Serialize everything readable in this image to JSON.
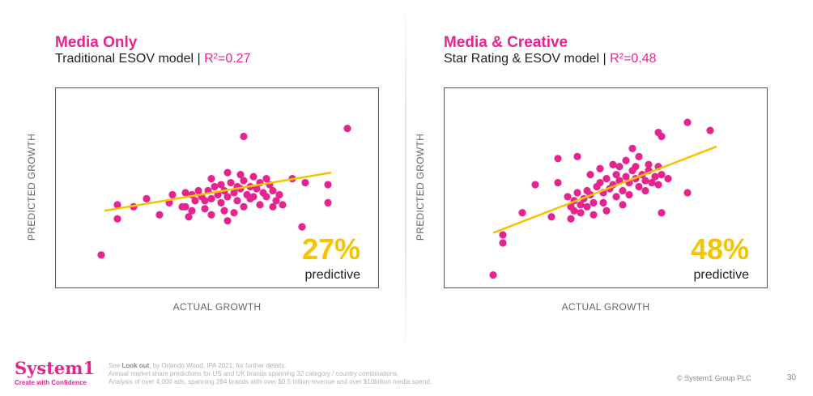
{
  "panels": [
    {
      "title": "Media Only",
      "subtitle": "Traditional ESOV model | ",
      "r2_label": "R²=0.27",
      "pct": "27%",
      "pct_caption": "predictive"
    },
    {
      "title": "Media & Creative",
      "subtitle": "Star Rating & ESOV model | ",
      "r2_label": "R²=0.48",
      "pct": "48%",
      "pct_caption": "predictive"
    }
  ],
  "footer": {
    "logo_text": "System1",
    "logo_tagline": "Create with Confidence",
    "note_prefix": "See ",
    "note_bold": "Look out",
    "note_suffix": ", by Orlando Wood, IPA 2021, for further details.",
    "note_line2": "Annual market share predictions for US and UK brands spanning 32 category / country combinations.",
    "note_line3": "Analysis of over 4,000 ads, spanning 264 brands with over $0.5 trillion revenue and over $10billion media spend.",
    "copyright": "© System1 Group PLC",
    "page_number": "30"
  },
  "colors": {
    "accent": "#e6248f",
    "point": "#e6248f",
    "trend": "#f5c400",
    "axis_text": "#666666"
  },
  "chart_data": [
    {
      "type": "scatter",
      "title": "Media Only",
      "subtitle": "Traditional ESOV model | R²=0.27",
      "xlabel": "ACTUAL GROWTH",
      "ylabel": "PREDICTED GROWTH",
      "xlim": [
        0,
        100
      ],
      "ylim": [
        0,
        100
      ],
      "grid": false,
      "legend": "none",
      "annotation": "27% predictive",
      "trendline": {
        "x": [
          15,
          85
        ],
        "y": [
          39,
          58
        ]
      },
      "points": [
        {
          "x": 14,
          "y": 17
        },
        {
          "x": 19,
          "y": 35
        },
        {
          "x": 19,
          "y": 42
        },
        {
          "x": 24,
          "y": 41
        },
        {
          "x": 28,
          "y": 45
        },
        {
          "x": 32,
          "y": 37
        },
        {
          "x": 35,
          "y": 43
        },
        {
          "x": 36,
          "y": 47
        },
        {
          "x": 40,
          "y": 48
        },
        {
          "x": 41,
          "y": 36
        },
        {
          "x": 39,
          "y": 41
        },
        {
          "x": 42,
          "y": 47
        },
        {
          "x": 43,
          "y": 44
        },
        {
          "x": 44,
          "y": 49
        },
        {
          "x": 45,
          "y": 46
        },
        {
          "x": 46,
          "y": 44
        },
        {
          "x": 47,
          "y": 49
        },
        {
          "x": 48,
          "y": 45
        },
        {
          "x": 49,
          "y": 51
        },
        {
          "x": 50,
          "y": 47
        },
        {
          "x": 51,
          "y": 43
        },
        {
          "x": 52,
          "y": 49
        },
        {
          "x": 53,
          "y": 46
        },
        {
          "x": 54,
          "y": 53
        },
        {
          "x": 55,
          "y": 48
        },
        {
          "x": 56,
          "y": 44
        },
        {
          "x": 57,
          "y": 50
        },
        {
          "x": 58,
          "y": 54
        },
        {
          "x": 59,
          "y": 47
        },
        {
          "x": 60,
          "y": 51
        },
        {
          "x": 61,
          "y": 46
        },
        {
          "x": 62,
          "y": 50
        },
        {
          "x": 63,
          "y": 53
        },
        {
          "x": 64,
          "y": 48
        },
        {
          "x": 65,
          "y": 46
        },
        {
          "x": 66,
          "y": 52
        },
        {
          "x": 67,
          "y": 49
        },
        {
          "x": 68,
          "y": 44
        },
        {
          "x": 48,
          "y": 55
        },
        {
          "x": 53,
          "y": 58
        },
        {
          "x": 57,
          "y": 57
        },
        {
          "x": 61,
          "y": 56
        },
        {
          "x": 46,
          "y": 40
        },
        {
          "x": 52,
          "y": 39
        },
        {
          "x": 55,
          "y": 38
        },
        {
          "x": 58,
          "y": 41
        },
        {
          "x": 63,
          "y": 42
        },
        {
          "x": 67,
          "y": 41
        },
        {
          "x": 48,
          "y": 37
        },
        {
          "x": 42,
          "y": 39
        },
        {
          "x": 51,
          "y": 52
        },
        {
          "x": 56,
          "y": 51
        },
        {
          "x": 60,
          "y": 45
        },
        {
          "x": 65,
          "y": 55
        },
        {
          "x": 69,
          "y": 47
        },
        {
          "x": 58,
          "y": 76
        },
        {
          "x": 53,
          "y": 34
        },
        {
          "x": 70,
          "y": 42
        },
        {
          "x": 73,
          "y": 55
        },
        {
          "x": 76,
          "y": 31
        },
        {
          "x": 77,
          "y": 53
        },
        {
          "x": 84,
          "y": 43
        },
        {
          "x": 84,
          "y": 52
        },
        {
          "x": 90,
          "y": 80
        },
        {
          "x": 40,
          "y": 41
        }
      ]
    },
    {
      "type": "scatter",
      "title": "Media & Creative",
      "subtitle": "Star Rating & ESOV model | R²=0.48",
      "xlabel": "ACTUAL GROWTH",
      "ylabel": "PREDICTED GROWTH",
      "xlim": [
        0,
        100
      ],
      "ylim": [
        0,
        100
      ],
      "grid": false,
      "legend": "none",
      "annotation": "48% predictive",
      "trendline": {
        "x": [
          15,
          84
        ],
        "y": [
          28,
          71
        ]
      },
      "points": [
        {
          "x": 15,
          "y": 7
        },
        {
          "x": 18,
          "y": 23
        },
        {
          "x": 18,
          "y": 27
        },
        {
          "x": 24,
          "y": 38
        },
        {
          "x": 28,
          "y": 52
        },
        {
          "x": 33,
          "y": 36
        },
        {
          "x": 35,
          "y": 53
        },
        {
          "x": 38,
          "y": 46
        },
        {
          "x": 39,
          "y": 41
        },
        {
          "x": 40,
          "y": 39
        },
        {
          "x": 40,
          "y": 44
        },
        {
          "x": 41,
          "y": 48
        },
        {
          "x": 42,
          "y": 42
        },
        {
          "x": 43,
          "y": 45
        },
        {
          "x": 44,
          "y": 49
        },
        {
          "x": 45,
          "y": 47
        },
        {
          "x": 46,
          "y": 43
        },
        {
          "x": 47,
          "y": 51
        },
        {
          "x": 48,
          "y": 53
        },
        {
          "x": 49,
          "y": 48
        },
        {
          "x": 50,
          "y": 55
        },
        {
          "x": 51,
          "y": 50
        },
        {
          "x": 52,
          "y": 52
        },
        {
          "x": 53,
          "y": 57
        },
        {
          "x": 54,
          "y": 54
        },
        {
          "x": 55,
          "y": 49
        },
        {
          "x": 56,
          "y": 56
        },
        {
          "x": 57,
          "y": 53
        },
        {
          "x": 58,
          "y": 59
        },
        {
          "x": 59,
          "y": 55
        },
        {
          "x": 60,
          "y": 51
        },
        {
          "x": 61,
          "y": 57
        },
        {
          "x": 62,
          "y": 54
        },
        {
          "x": 63,
          "y": 59
        },
        {
          "x": 64,
          "y": 53
        },
        {
          "x": 65,
          "y": 56
        },
        {
          "x": 45,
          "y": 57
        },
        {
          "x": 48,
          "y": 60
        },
        {
          "x": 52,
          "y": 62
        },
        {
          "x": 56,
          "y": 64
        },
        {
          "x": 60,
          "y": 66
        },
        {
          "x": 58,
          "y": 70
        },
        {
          "x": 44,
          "y": 41
        },
        {
          "x": 49,
          "y": 43
        },
        {
          "x": 53,
          "y": 46
        },
        {
          "x": 57,
          "y": 47
        },
        {
          "x": 62,
          "y": 49
        },
        {
          "x": 55,
          "y": 42
        },
        {
          "x": 46,
          "y": 37
        },
        {
          "x": 50,
          "y": 39
        },
        {
          "x": 54,
          "y": 61
        },
        {
          "x": 59,
          "y": 61
        },
        {
          "x": 63,
          "y": 62
        },
        {
          "x": 66,
          "y": 52
        },
        {
          "x": 67,
          "y": 57
        },
        {
          "x": 39,
          "y": 35
        },
        {
          "x": 42,
          "y": 38
        },
        {
          "x": 69,
          "y": 55
        },
        {
          "x": 35,
          "y": 65
        },
        {
          "x": 41,
          "y": 66
        },
        {
          "x": 66,
          "y": 78
        },
        {
          "x": 67,
          "y": 76
        },
        {
          "x": 66,
          "y": 61
        },
        {
          "x": 67,
          "y": 38
        },
        {
          "x": 75,
          "y": 48
        },
        {
          "x": 75,
          "y": 83
        },
        {
          "x": 82,
          "y": 79
        }
      ]
    }
  ]
}
